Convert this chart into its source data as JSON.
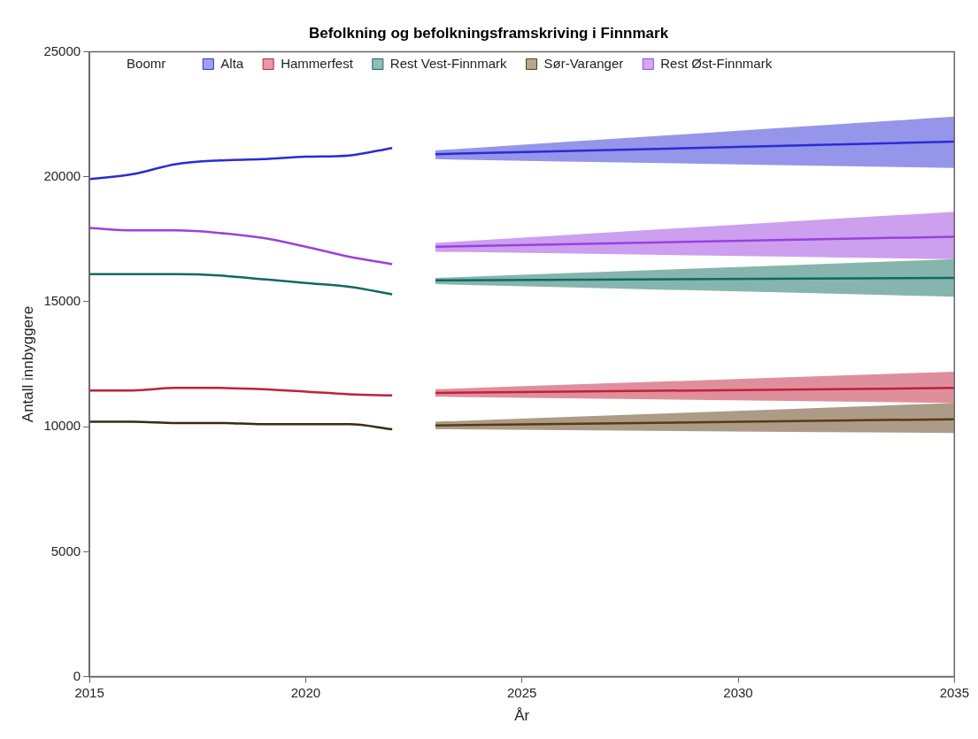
{
  "chart_data": {
    "type": "line",
    "title": "Befolkning og befolkningsframskriving i Finnmark",
    "xlabel": "År",
    "ylabel": "Antall innbyggere",
    "legend_title": "Boomr",
    "legend": "top",
    "grid": false,
    "marker": "none",
    "line_style": "solid",
    "xlim": [
      2015,
      2035
    ],
    "xticks": [
      2015,
      2020,
      2025,
      2030,
      2035
    ],
    "ylim": [
      0,
      25000
    ],
    "yticks": [
      0,
      5000,
      10000,
      15000,
      20000,
      25000
    ],
    "series": [
      {
        "color": "#2b2bd6",
        "x": [
          2015,
          2016,
          2017,
          2018,
          2019,
          2020,
          2021,
          2022
        ],
        "values": [
          19900,
          20100,
          20500,
          20650,
          20700,
          20800,
          20850,
          21150
        ]
      },
      {
        "color": "#c0203a",
        "x": [
          2015,
          2016,
          2017,
          2018,
          2019,
          2020,
          2021,
          2022
        ],
        "values": [
          11450,
          11450,
          11550,
          11550,
          11500,
          11400,
          11300,
          11250
        ]
      },
      {
        "color": "#0d6b5e",
        "x": [
          2015,
          2016,
          2017,
          2018,
          2019,
          2020,
          2021,
          2022
        ],
        "values": [
          16100,
          16100,
          16100,
          16050,
          15900,
          15750,
          15600,
          15300
        ]
      },
      {
        "color": "#3a2a10",
        "x": [
          2015,
          2016,
          2017,
          2018,
          2019,
          2020,
          2021,
          2022
        ],
        "values": [
          10200,
          10200,
          10150,
          10150,
          10100,
          10100,
          10100,
          9900
        ]
      },
      {
        "color": "#9b40e0",
        "x": [
          2015,
          2016,
          2017,
          2018,
          2019,
          2020,
          2021,
          2022
        ],
        "values": [
          17950,
          17850,
          17850,
          17750,
          17550,
          17200,
          16800,
          16500
        ]
      },
      {
        "name": "Alta",
        "color": "#2b2bd6",
        "x": [
          2023,
          2035
        ],
        "values": [
          20900,
          21400
        ],
        "lower": [
          20700,
          20350
        ],
        "upper": [
          21050,
          22400
        ]
      },
      {
        "name": "Hammerfest",
        "color": "#c0203a",
        "x": [
          2023,
          2035
        ],
        "values": [
          11350,
          11550
        ],
        "lower": [
          11200,
          10950
        ],
        "upper": [
          11500,
          12200
        ]
      },
      {
        "name": "Rest Vest-Finnmark",
        "color": "#0d6b5e",
        "x": [
          2023,
          2035
        ],
        "values": [
          15850,
          15950
        ],
        "lower": [
          15700,
          15200
        ],
        "upper": [
          15950,
          16700
        ]
      },
      {
        "name": "Sør-Varanger",
        "color": "#5a3a10",
        "x": [
          2023,
          2035
        ],
        "values": [
          10050,
          10300
        ],
        "lower": [
          9900,
          9750
        ],
        "upper": [
          10200,
          10950
        ]
      },
      {
        "name": "Rest Øst-Finnmark",
        "color": "#9b40e0",
        "x": [
          2023,
          2035
        ],
        "values": [
          17200,
          17600
        ],
        "lower": [
          17000,
          16700
        ],
        "upper": [
          17350,
          18600
        ]
      }
    ]
  }
}
